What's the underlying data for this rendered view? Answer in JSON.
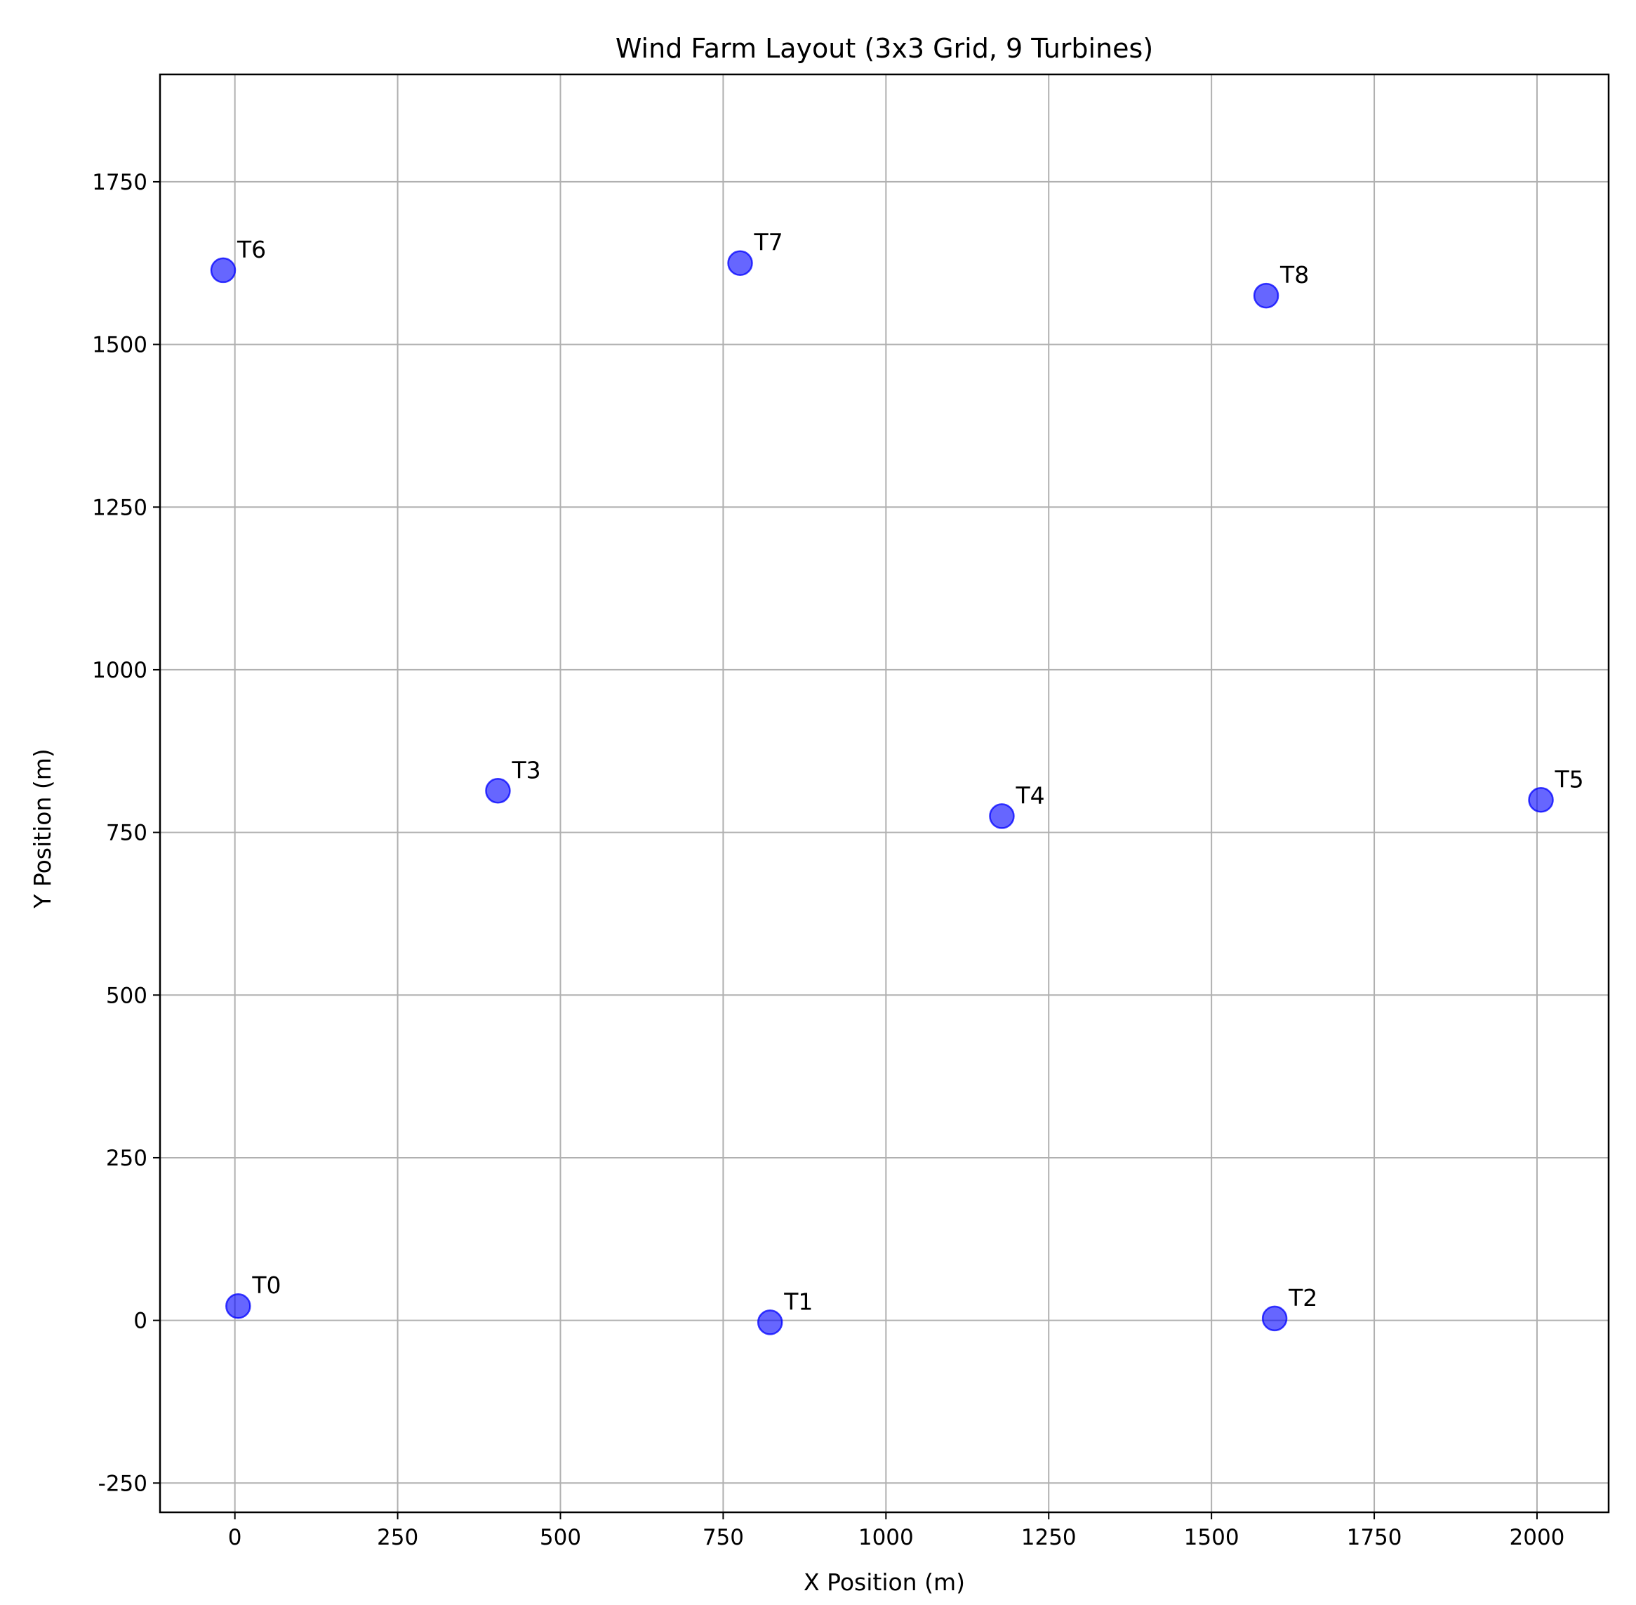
{
  "chart_data": {
    "type": "scatter",
    "title": "Wind Farm Layout (3x3 Grid, 9 Turbines)",
    "xlabel": "X Position (m)",
    "ylabel": "Y Position (m)",
    "xlim": [
      -115,
      2110
    ],
    "ylim": [
      -295,
      1915
    ],
    "xticks": [
      0,
      250,
      500,
      750,
      1000,
      1250,
      1500,
      1750,
      2000
    ],
    "yticks": [
      -250,
      0,
      250,
      500,
      750,
      1000,
      1250,
      1500,
      1750
    ],
    "grid": true,
    "marker_color": "#0000ff",
    "points": [
      {
        "label": "T0",
        "x": 5,
        "y": 22
      },
      {
        "label": "T1",
        "x": 822,
        "y": -3
      },
      {
        "label": "T2",
        "x": 1597,
        "y": 3
      },
      {
        "label": "T3",
        "x": 404,
        "y": 814
      },
      {
        "label": "T4",
        "x": 1178,
        "y": 775
      },
      {
        "label": "T5",
        "x": 2006,
        "y": 800
      },
      {
        "label": "T6",
        "x": -18,
        "y": 1614
      },
      {
        "label": "T7",
        "x": 776,
        "y": 1625
      },
      {
        "label": "T8",
        "x": 1584,
        "y": 1575
      }
    ]
  }
}
